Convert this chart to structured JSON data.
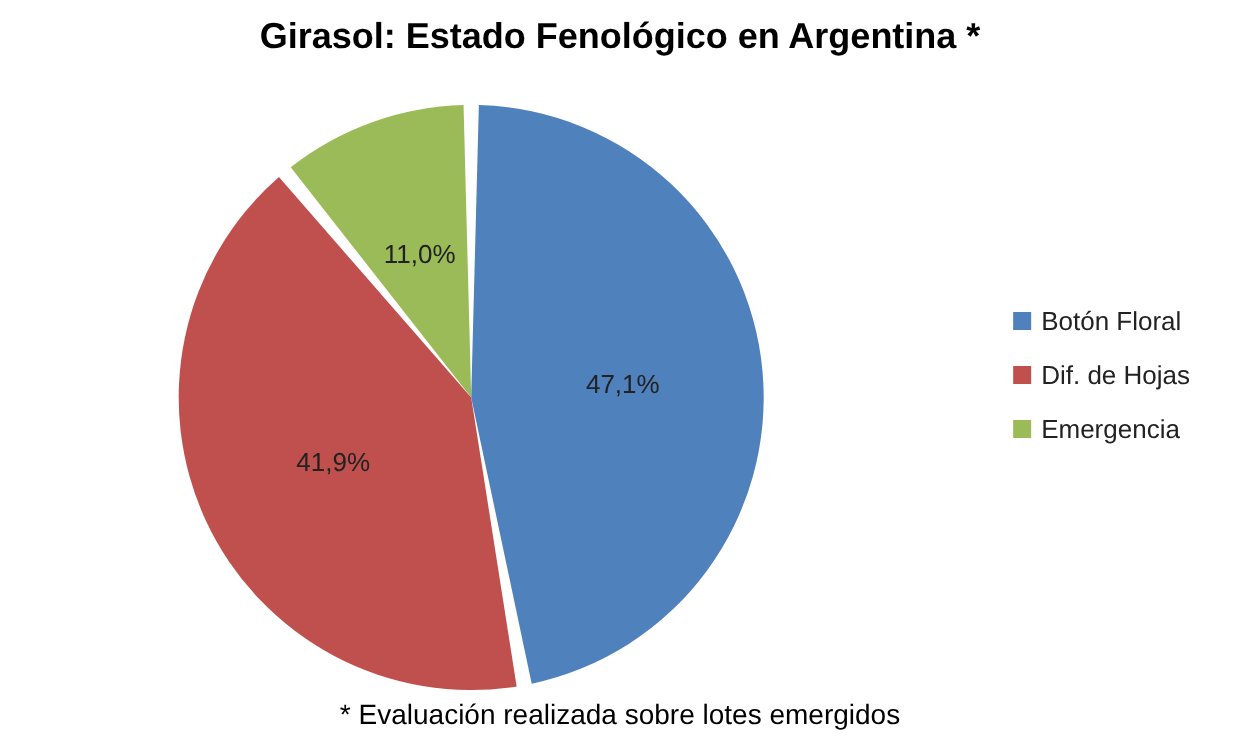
{
  "chart_data": {
    "type": "pie",
    "title": "Girasol: Estado Fenológico en Argentina *",
    "categories": [
      "Botón Floral",
      "Dif. de Hojas",
      "Emergencia"
    ],
    "values": [
      47.1,
      41.9,
      11.0
    ],
    "value_labels": [
      "47,1%",
      "41,9%",
      "11,0%"
    ],
    "colors": [
      "#4f81bd",
      "#c0504d",
      "#9bbb59"
    ],
    "legend": "right",
    "annotations": [
      "* Evaluación realizada sobre lotes emergidos"
    ]
  }
}
